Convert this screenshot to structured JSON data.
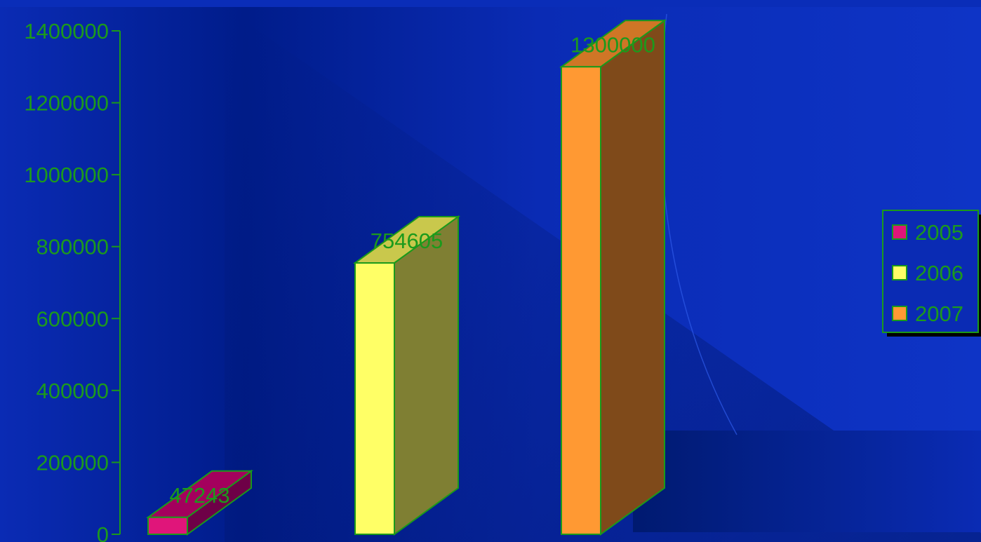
{
  "chart_data": {
    "type": "bar",
    "categories": [
      "2005",
      "2006",
      "2007"
    ],
    "values": [
      47243,
      754605,
      1300000
    ],
    "data_labels": [
      "47243",
      "754605",
      "1300000"
    ],
    "yticks": [
      "0",
      "200000",
      "400000",
      "600000",
      "800000",
      "1000000",
      "1200000",
      "1400000"
    ],
    "ylim": [
      0,
      1400000
    ],
    "legend": {
      "position": "right",
      "entries": [
        "2005",
        "2006",
        "2007"
      ]
    },
    "colors": {
      "front": [
        "#e0157a",
        "#ffff66",
        "#ff9933"
      ],
      "top": [
        "#a4005d",
        "#c9c84c",
        "#cf7626"
      ],
      "side": [
        "#6e0047",
        "#7f7f33",
        "#7f4a1a"
      ],
      "outline": "#1a9a1a",
      "text": "#1c9a1c"
    },
    "title": "",
    "xlabel": "",
    "ylabel": ""
  }
}
